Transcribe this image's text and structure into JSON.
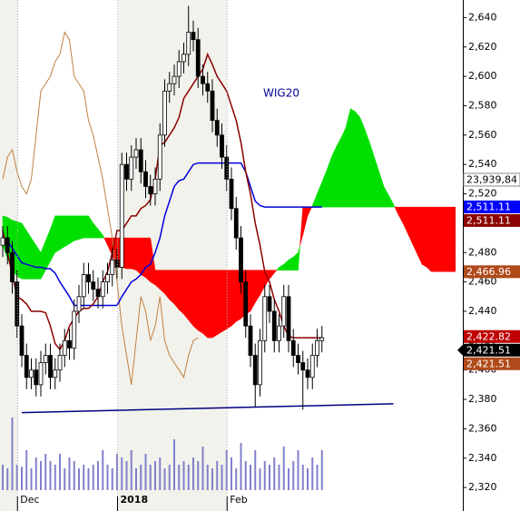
{
  "chart_data": {
    "type": "candlestick",
    "title": "WIG20",
    "ylim": [
      2304,
      2652
    ],
    "yticks": [
      {
        "value": 2320,
        "label": "2,320"
      },
      {
        "value": 2340,
        "label": "2,340"
      },
      {
        "value": 2360,
        "label": "2,360"
      },
      {
        "value": 2380,
        "label": "2,380"
      },
      {
        "value": 2400,
        "label": "2,400"
      },
      {
        "value": 2420,
        "label": "2,420"
      },
      {
        "value": 2440,
        "label": "2,440"
      },
      {
        "value": 2460,
        "label": "2,460"
      },
      {
        "value": 2480,
        "label": "2,480"
      },
      {
        "value": 2500,
        "label": "2,500"
      },
      {
        "value": 2520,
        "label": "2,520"
      },
      {
        "value": 2540,
        "label": "2,540"
      },
      {
        "value": 2560,
        "label": "2,560"
      },
      {
        "value": 2580,
        "label": "2,580"
      },
      {
        "value": 2600,
        "label": "2,600"
      },
      {
        "value": 2620,
        "label": "2,620"
      },
      {
        "value": 2640,
        "label": "2,640"
      }
    ],
    "grid": false,
    "categories": [
      null,
      null,
      null,
      "Dec",
      null,
      null,
      null,
      null,
      null,
      null,
      null,
      null,
      null,
      null,
      null,
      null,
      null,
      null,
      null,
      null,
      null,
      null,
      null,
      null,
      "2018",
      null,
      null,
      null,
      null,
      null,
      null,
      null,
      null,
      null,
      null,
      null,
      null,
      null,
      null,
      null,
      null,
      null,
      null,
      null,
      null,
      null,
      null,
      "Feb",
      null,
      null,
      null,
      null,
      null,
      null,
      null,
      null,
      null,
      null,
      null,
      null,
      null,
      null,
      null,
      null,
      null,
      null,
      null,
      null,
      null,
      null,
      null,
      null,
      null,
      null,
      null,
      null,
      null,
      null,
      null,
      null,
      null,
      null,
      null,
      null,
      null,
      null,
      null,
      null,
      null,
      null,
      null,
      null,
      null,
      null,
      null,
      null
    ],
    "ohlc": {
      "up_color": "#ffffff",
      "down_color": "#000000",
      "open": [
        2485,
        2490,
        2480,
        2460,
        2430,
        2410,
        2395,
        2400,
        2390,
        2405,
        2410,
        2395,
        2400,
        2410,
        2420,
        2415,
        2440,
        2450,
        2465,
        2460,
        2455,
        2450,
        2460,
        2465,
        2475,
        2470,
        2540,
        2530,
        2545,
        2550,
        2535,
        2525,
        2520,
        2530,
        2560,
        2590,
        2595,
        2600,
        2610,
        2615,
        2630,
        2625,
        2600,
        2595,
        2590,
        2570,
        2560,
        2545,
        2530,
        2510,
        2490,
        2460,
        2430,
        2410,
        2390,
        2420,
        2450,
        2440,
        2420,
        2430,
        2450,
        2420,
        2410,
        2405,
        2400,
        2395,
        2410,
        2420,
        null,
        null,
        null,
        null,
        null,
        null,
        null,
        null,
        null,
        null,
        null,
        null,
        null,
        null,
        null,
        null,
        null,
        null,
        null,
        null,
        null,
        null,
        null,
        null,
        null,
        null,
        null,
        null
      ],
      "high": [
        2498,
        2498,
        2488,
        2468,
        2438,
        2418,
        2408,
        2408,
        2413,
        2418,
        2418,
        2408,
        2418,
        2428,
        2428,
        2448,
        2458,
        2473,
        2473,
        2468,
        2463,
        2468,
        2473,
        2483,
        2483,
        2548,
        2548,
        2553,
        2558,
        2558,
        2543,
        2533,
        2538,
        2568,
        2598,
        2603,
        2608,
        2618,
        2623,
        2648,
        2638,
        2633,
        2608,
        2603,
        2598,
        2578,
        2568,
        2553,
        2538,
        2518,
        2498,
        2468,
        2438,
        2418,
        2428,
        2458,
        2458,
        2448,
        2438,
        2458,
        2458,
        2428,
        2418,
        2413,
        2408,
        2418,
        2428,
        2430,
        null,
        null,
        null,
        null,
        null,
        null,
        null,
        null,
        null,
        null,
        null,
        null,
        null,
        null,
        null,
        null,
        null,
        null,
        null,
        null,
        null,
        null,
        null,
        null,
        null,
        null,
        null,
        null
      ],
      "low": [
        2477,
        2472,
        2452,
        2422,
        2402,
        2387,
        2387,
        2382,
        2382,
        2397,
        2387,
        2387,
        2392,
        2402,
        2407,
        2407,
        2432,
        2442,
        2452,
        2447,
        2442,
        2442,
        2452,
        2457,
        2462,
        2462,
        2522,
        2522,
        2537,
        2527,
        2517,
        2512,
        2512,
        2522,
        2552,
        2582,
        2587,
        2592,
        2602,
        2607,
        2617,
        2592,
        2587,
        2582,
        2562,
        2552,
        2537,
        2522,
        2502,
        2482,
        2452,
        2422,
        2402,
        2375,
        2382,
        2412,
        2432,
        2412,
        2412,
        2422,
        2412,
        2402,
        2397,
        2373,
        2387,
        2387,
        2402,
        2412,
        null,
        null,
        null,
        null,
        null,
        null,
        null,
        null,
        null,
        null,
        null,
        null,
        null,
        null,
        null,
        null,
        null,
        null,
        null,
        null,
        null,
        null,
        null,
        null,
        null,
        null,
        null,
        null
      ],
      "close": [
        2490,
        2480,
        2460,
        2430,
        2410,
        2395,
        2400,
        2390,
        2405,
        2410,
        2395,
        2400,
        2410,
        2420,
        2415,
        2440,
        2450,
        2465,
        2460,
        2455,
        2450,
        2460,
        2465,
        2475,
        2470,
        2540,
        2530,
        2545,
        2550,
        2535,
        2525,
        2520,
        2530,
        2560,
        2590,
        2595,
        2600,
        2610,
        2615,
        2630,
        2625,
        2600,
        2595,
        2590,
        2570,
        2560,
        2545,
        2530,
        2510,
        2490,
        2460,
        2430,
        2410,
        2390,
        2420,
        2450,
        2440,
        2420,
        2430,
        2450,
        2420,
        2410,
        2405,
        2400,
        2395,
        2410,
        2420,
        2422,
        null,
        null,
        null,
        null,
        null,
        null,
        null,
        null,
        null,
        null,
        null,
        null,
        null,
        null,
        null,
        null,
        null,
        null,
        null,
        null,
        null,
        null,
        null,
        null,
        null,
        null,
        null,
        null
      ]
    },
    "lines": [
      {
        "color": "#c08040",
        "width": 1,
        "values": [
          2530,
          2545,
          2550,
          2535,
          2525,
          2520,
          2530,
          2560,
          2590,
          2595,
          2600,
          2610,
          2615,
          2630,
          2625,
          2600,
          2595,
          2590,
          2570,
          2560,
          2545,
          2530,
          2510,
          2490,
          2460,
          2430,
          2410,
          2390,
          2420,
          2450,
          2440,
          2420,
          2430,
          2450,
          2420,
          2410,
          2405,
          2400,
          2395,
          2410,
          2420,
          2422,
          null,
          null,
          null,
          null,
          null,
          null,
          null,
          null,
          null,
          null,
          null,
          null,
          null,
          null,
          null,
          null,
          null,
          null,
          null,
          null,
          null,
          null,
          null,
          null,
          null,
          null,
          null,
          null,
          null,
          null,
          null,
          null,
          null,
          null,
          null,
          null,
          null,
          null,
          null,
          null,
          null,
          null,
          null,
          null,
          null,
          null,
          null,
          null,
          null,
          null,
          null,
          null,
          null,
          null
        ]
      },
      {
        "color": "#0000dd",
        "width": 1.5,
        "values": [
          2491,
          2488,
          2483,
          2478,
          2473,
          2472,
          2471,
          2470,
          2470,
          2469,
          2469,
          2466,
          2460,
          2455,
          2450,
          2444,
          2444,
          2444,
          2444,
          2444,
          2444,
          2444,
          2444,
          2444,
          2444,
          2450,
          2455,
          2460,
          2462,
          2465,
          2470,
          2472,
          2480,
          2490,
          2505,
          2515,
          2525,
          2529,
          2530,
          2535,
          2540,
          2541,
          2541,
          2541,
          2541,
          2541,
          2541,
          2541,
          2541,
          2541,
          2541,
          2535,
          2525,
          2515,
          2512,
          2511,
          2511,
          2511,
          2511,
          2511,
          2511,
          2511,
          2511,
          2511,
          2511,
          2511,
          2511,
          2511,
          null,
          null,
          null,
          null,
          null,
          null,
          null,
          null,
          null,
          null,
          null,
          null,
          null,
          null,
          null,
          null,
          null,
          null,
          null,
          null,
          null,
          null,
          null,
          null,
          null,
          null,
          null,
          null
        ]
      },
      {
        "color": "#8b0000",
        "width": 1.5,
        "values": [
          2495,
          2480,
          2465,
          2450,
          2448,
          2445,
          2440,
          2440,
          2440,
          2439,
          2430,
          2418,
          2414,
          2420,
          2430,
          2435,
          2440,
          2442,
          2442,
          2445,
          2450,
          2460,
          2467,
          2480,
          2495,
          2495,
          2500,
          2505,
          2505,
          2510,
          2512,
          2516,
          2530,
          2553,
          2555,
          2560,
          2565,
          2572,
          2585,
          2590,
          2595,
          2600,
          2605,
          2615,
          2608,
          2600,
          2595,
          2590,
          2580,
          2570,
          2555,
          2535,
          2520,
          2500,
          2485,
          2467,
          2460,
          2448,
          2440,
          2430,
          2423,
          2422,
          2422,
          2422,
          2422,
          2422,
          2422,
          2422,
          null,
          null,
          null,
          null,
          null,
          null,
          null,
          null,
          null,
          null,
          null,
          null,
          null,
          null,
          null,
          null,
          null,
          null,
          null,
          null,
          null,
          null,
          null,
          null,
          null,
          null,
          null,
          null
        ]
      }
    ],
    "cloud": {
      "up_color": "#00e000",
      "down_color": "#ff0000",
      "span_a": [
        2505,
        2504,
        2502,
        2501,
        2500,
        2495,
        2490,
        2485,
        2480,
        2488,
        2496,
        2505,
        2505,
        2505,
        2505,
        2505,
        2505,
        2505,
        2505,
        2500,
        2496,
        2492,
        2485,
        2478,
        2470,
        2470,
        2469,
        2469,
        2468,
        2465,
        2463,
        2460,
        2458,
        2455,
        2452,
        2448,
        2445,
        2441,
        2438,
        2434,
        2430,
        2427,
        2425,
        2422,
        2422,
        2424,
        2426,
        2428,
        2430,
        2433,
        2435,
        2438,
        2440,
        2446,
        2451,
        2457,
        2462,
        2466,
        2470,
        2472,
        2475,
        2477,
        2480,
        2492,
        2505,
        2512,
        2520,
        2528,
        2536,
        2545,
        2552,
        2558,
        2565,
        2578,
        2576,
        2572,
        2564,
        2555,
        2545,
        2535,
        2525,
        2519,
        2513,
        2506,
        2500,
        2493,
        2486,
        2479,
        2472,
        2470,
        2467,
        2467,
        2467,
        2467,
        2467,
        2467
      ],
      "span_b": [
        2485,
        2476,
        2468,
        2464,
        2462,
        2462,
        2462,
        2462,
        2462,
        2468,
        2474,
        2480,
        2482,
        2484,
        2486,
        2488,
        2489,
        2490,
        2490,
        2490,
        2490,
        2490,
        2490,
        2490,
        2490,
        2490,
        2490,
        2490,
        2490,
        2490,
        2490,
        2490,
        2468,
        2468,
        2468,
        2468,
        2468,
        2468,
        2468,
        2468,
        2468,
        2468,
        2468,
        2468,
        2468,
        2468,
        2468,
        2468,
        2468,
        2468,
        2468,
        2468,
        2468,
        2468,
        2468,
        2468,
        2468,
        2468,
        2468,
        2468,
        2468,
        2468,
        2468,
        2511,
        2511,
        2511,
        2511,
        2511,
        2511,
        2511,
        2511,
        2511,
        2511,
        2511,
        2511,
        2511,
        2511,
        2511,
        2511,
        2511,
        2511,
        2511,
        2511,
        2511,
        2511,
        2511,
        2511,
        2511,
        2511,
        2511,
        2511,
        2511,
        2511,
        2511,
        2511,
        2511
      ]
    },
    "support": {
      "color": "#000080",
      "x": [
        4,
        82
      ],
      "values": [
        2371,
        2377
      ]
    },
    "volume": {
      "color": "#8080cc",
      "values": [
        35,
        30,
        100,
        35,
        32,
        55,
        30,
        45,
        40,
        50,
        40,
        35,
        50,
        30,
        45,
        40,
        30,
        35,
        30,
        35,
        40,
        55,
        35,
        30,
        50,
        45,
        40,
        55,
        30,
        35,
        50,
        35,
        40,
        45,
        30,
        35,
        70,
        35,
        40,
        35,
        45,
        40,
        60,
        35,
        30,
        40,
        35,
        55,
        45,
        30,
        65,
        40,
        35,
        55,
        30,
        40,
        35,
        45,
        35,
        60,
        30,
        40,
        55,
        35,
        30,
        45,
        35,
        55,
        null,
        null,
        null,
        null,
        null,
        null,
        null,
        null,
        null,
        null,
        null,
        null,
        null,
        null,
        null,
        null,
        null,
        null,
        null,
        null,
        null,
        null,
        null,
        null,
        null,
        null,
        null,
        null
      ]
    },
    "volume_label": "23,939,84",
    "badges": [
      {
        "value": 2511.11,
        "label": "2,511.11",
        "color": "#0000ff"
      },
      {
        "value": 2511.11,
        "label": "2,511.11",
        "color": "#8b0000"
      },
      {
        "value": 2466.96,
        "label": "2,466.96",
        "color": "#b04a1a"
      },
      {
        "value": 2422.82,
        "label": "2,422.82",
        "color": "#c00000"
      },
      {
        "value": 2421.51,
        "label": "2,421.51",
        "color": "#000000"
      },
      {
        "value": 2421.51,
        "label": "2,421.51",
        "color": "#b04a1a"
      }
    ]
  }
}
